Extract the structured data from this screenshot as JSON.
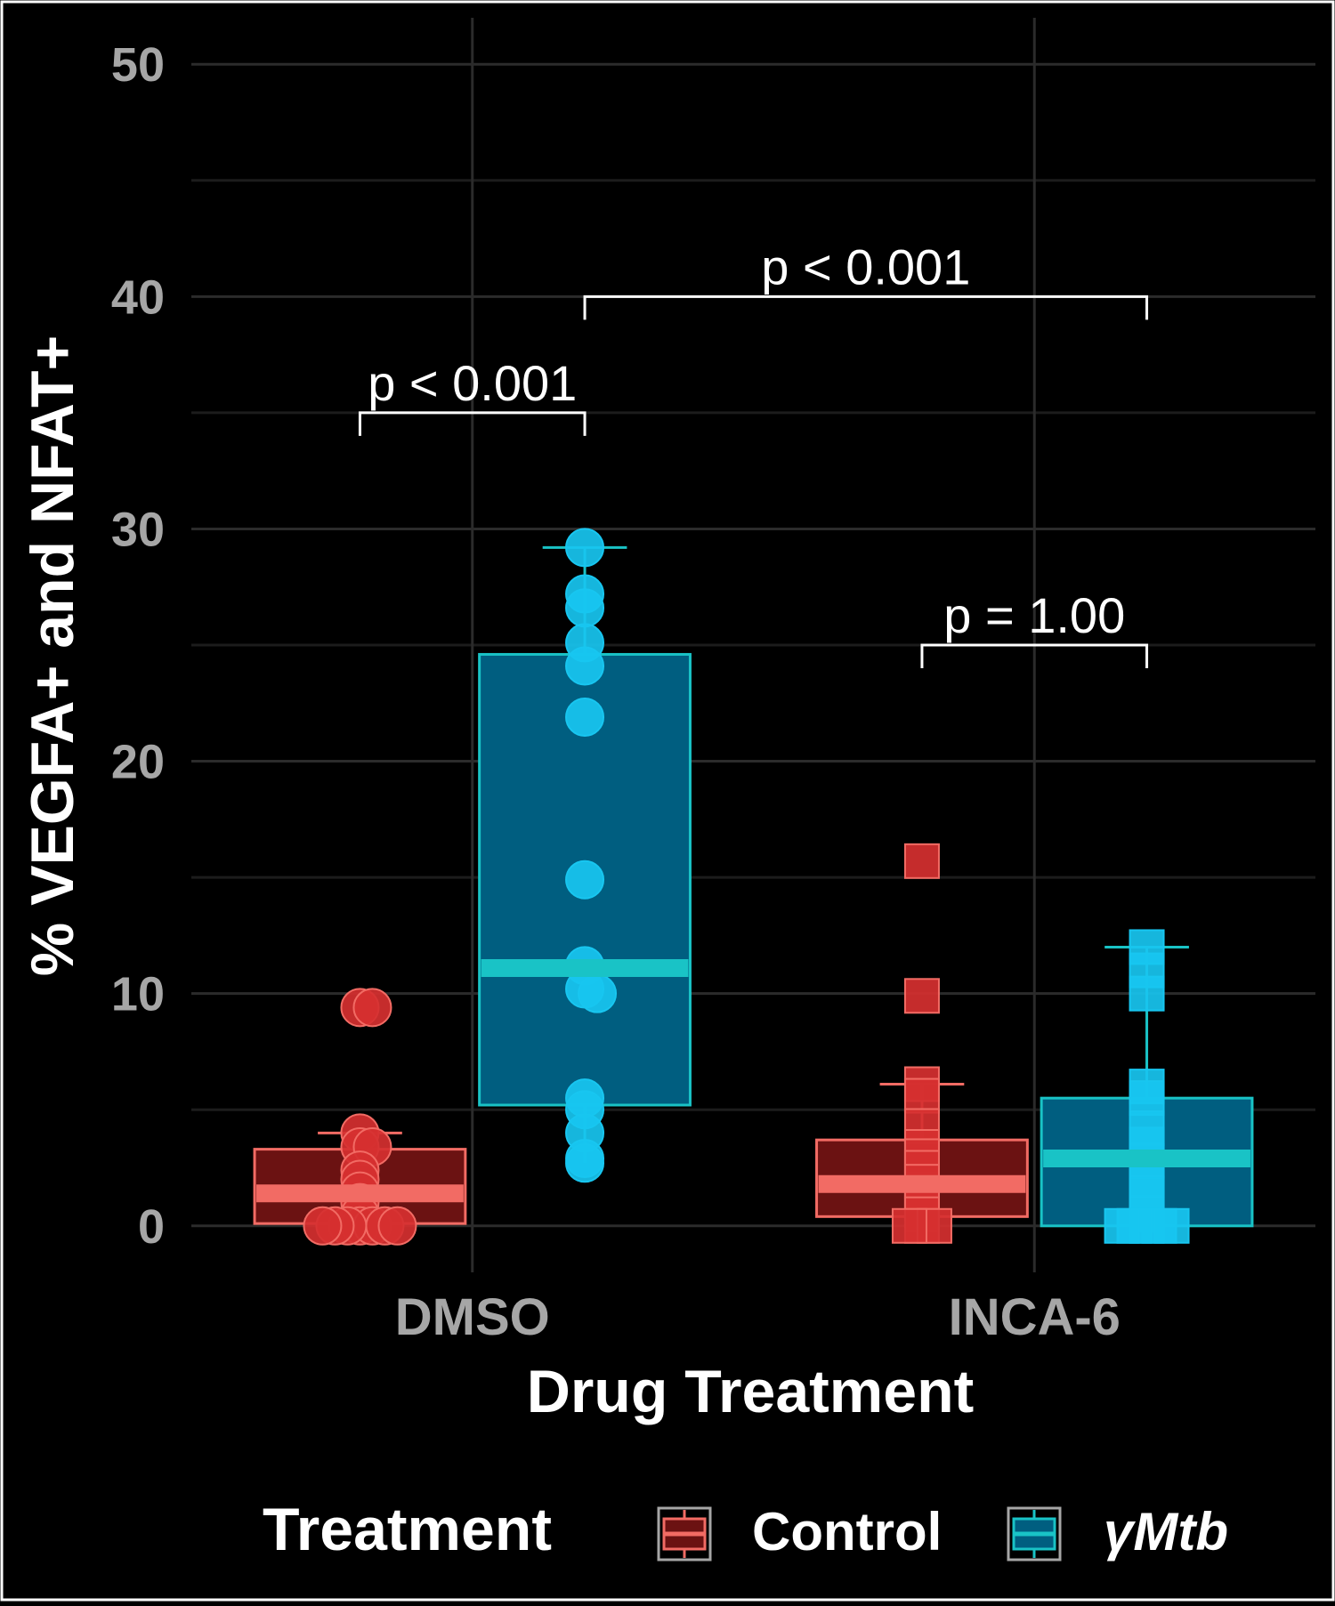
{
  "chart_data": {
    "type": "box",
    "xlabel": "Drug Treatment",
    "ylabel": "% VEGFA+ and NFAT+",
    "ylim": [
      -2.0,
      52.0
    ],
    "yticks": [
      0,
      10,
      20,
      30,
      40,
      50
    ],
    "grid": true,
    "legend_position": "bottom",
    "categories": [
      "DMSO",
      "INCA-6"
    ],
    "legend": {
      "title": "Treatment",
      "items": [
        {
          "label": "Control",
          "fill": "#6b1212",
          "stroke": "#f26b64"
        },
        {
          "label": "γMtb",
          "fill": "#005e80",
          "stroke": "#19c3c6",
          "italic": true
        }
      ]
    },
    "groups": [
      {
        "category": "DMSO",
        "series": "Control",
        "shape": "circle",
        "point_color": "#d63030",
        "fill": "#6b1212",
        "stroke": "#f26b64",
        "box": {
          "whisker_low": 0,
          "q1": 0.1,
          "median": 1.4,
          "q3": 3.3,
          "whisker_high": 4.0
        },
        "points": [
          9.4,
          9.4,
          4.0,
          3.4,
          3.4,
          2.4,
          2.0,
          1.5,
          1.0,
          0.5,
          0.0,
          0.0,
          0.0,
          0.0,
          0.0,
          0.0,
          0.0
        ]
      },
      {
        "category": "DMSO",
        "series": "γMtb",
        "shape": "circle",
        "point_color": "#18c6f0",
        "fill": "#005e80",
        "stroke": "#19c3c6",
        "box": {
          "whisker_low": 2.7,
          "q1": 5.2,
          "median": 11.1,
          "q3": 24.6,
          "whisker_high": 29.2
        },
        "points": [
          29.2,
          27.2,
          26.6,
          25.1,
          24.1,
          21.9,
          14.9,
          11.2,
          10.2,
          10.0,
          5.5,
          5.0,
          4.0,
          2.9,
          2.7
        ]
      },
      {
        "category": "INCA-6",
        "series": "Control",
        "shape": "square",
        "point_color": "#d63030",
        "fill": "#6b1212",
        "stroke": "#f26b64",
        "box": {
          "whisker_low": 0,
          "q1": 0.4,
          "median": 1.8,
          "q3": 3.7,
          "whisker_high": 6.1
        },
        "points": [
          15.7,
          9.9,
          6.1,
          5.6,
          4.3,
          3.4,
          3.0,
          2.5,
          1.9,
          1.4,
          1.0,
          0.5,
          0.0,
          0.0,
          0.0
        ]
      },
      {
        "category": "INCA-6",
        "series": "γMtb",
        "shape": "square",
        "point_color": "#18c6f0",
        "fill": "#005e80",
        "stroke": "#19c3c6",
        "box": {
          "whisker_low": 0,
          "q1": 0.0,
          "median": 2.9,
          "q3": 5.5,
          "whisker_high": 12.0
        },
        "points": [
          12.0,
          11.0,
          10.0,
          6.0,
          5.5,
          4.2,
          3.5,
          2.8,
          2.0,
          1.4,
          0.5,
          0.0,
          0.0,
          0.0,
          0.0,
          0.0
        ]
      }
    ],
    "annotations": [
      {
        "text": "p < 0.001",
        "from": "DMSO Control",
        "to": "DMSO γMtb",
        "y": 35.0
      },
      {
        "text": "p < 0.001",
        "from": "DMSO γMtb",
        "to": "INCA-6 γMtb",
        "y": 40.0
      },
      {
        "text": "p = 1.00",
        "from": "INCA-6 Control",
        "to": "INCA-6 γMtb",
        "y": 25.0
      }
    ]
  }
}
